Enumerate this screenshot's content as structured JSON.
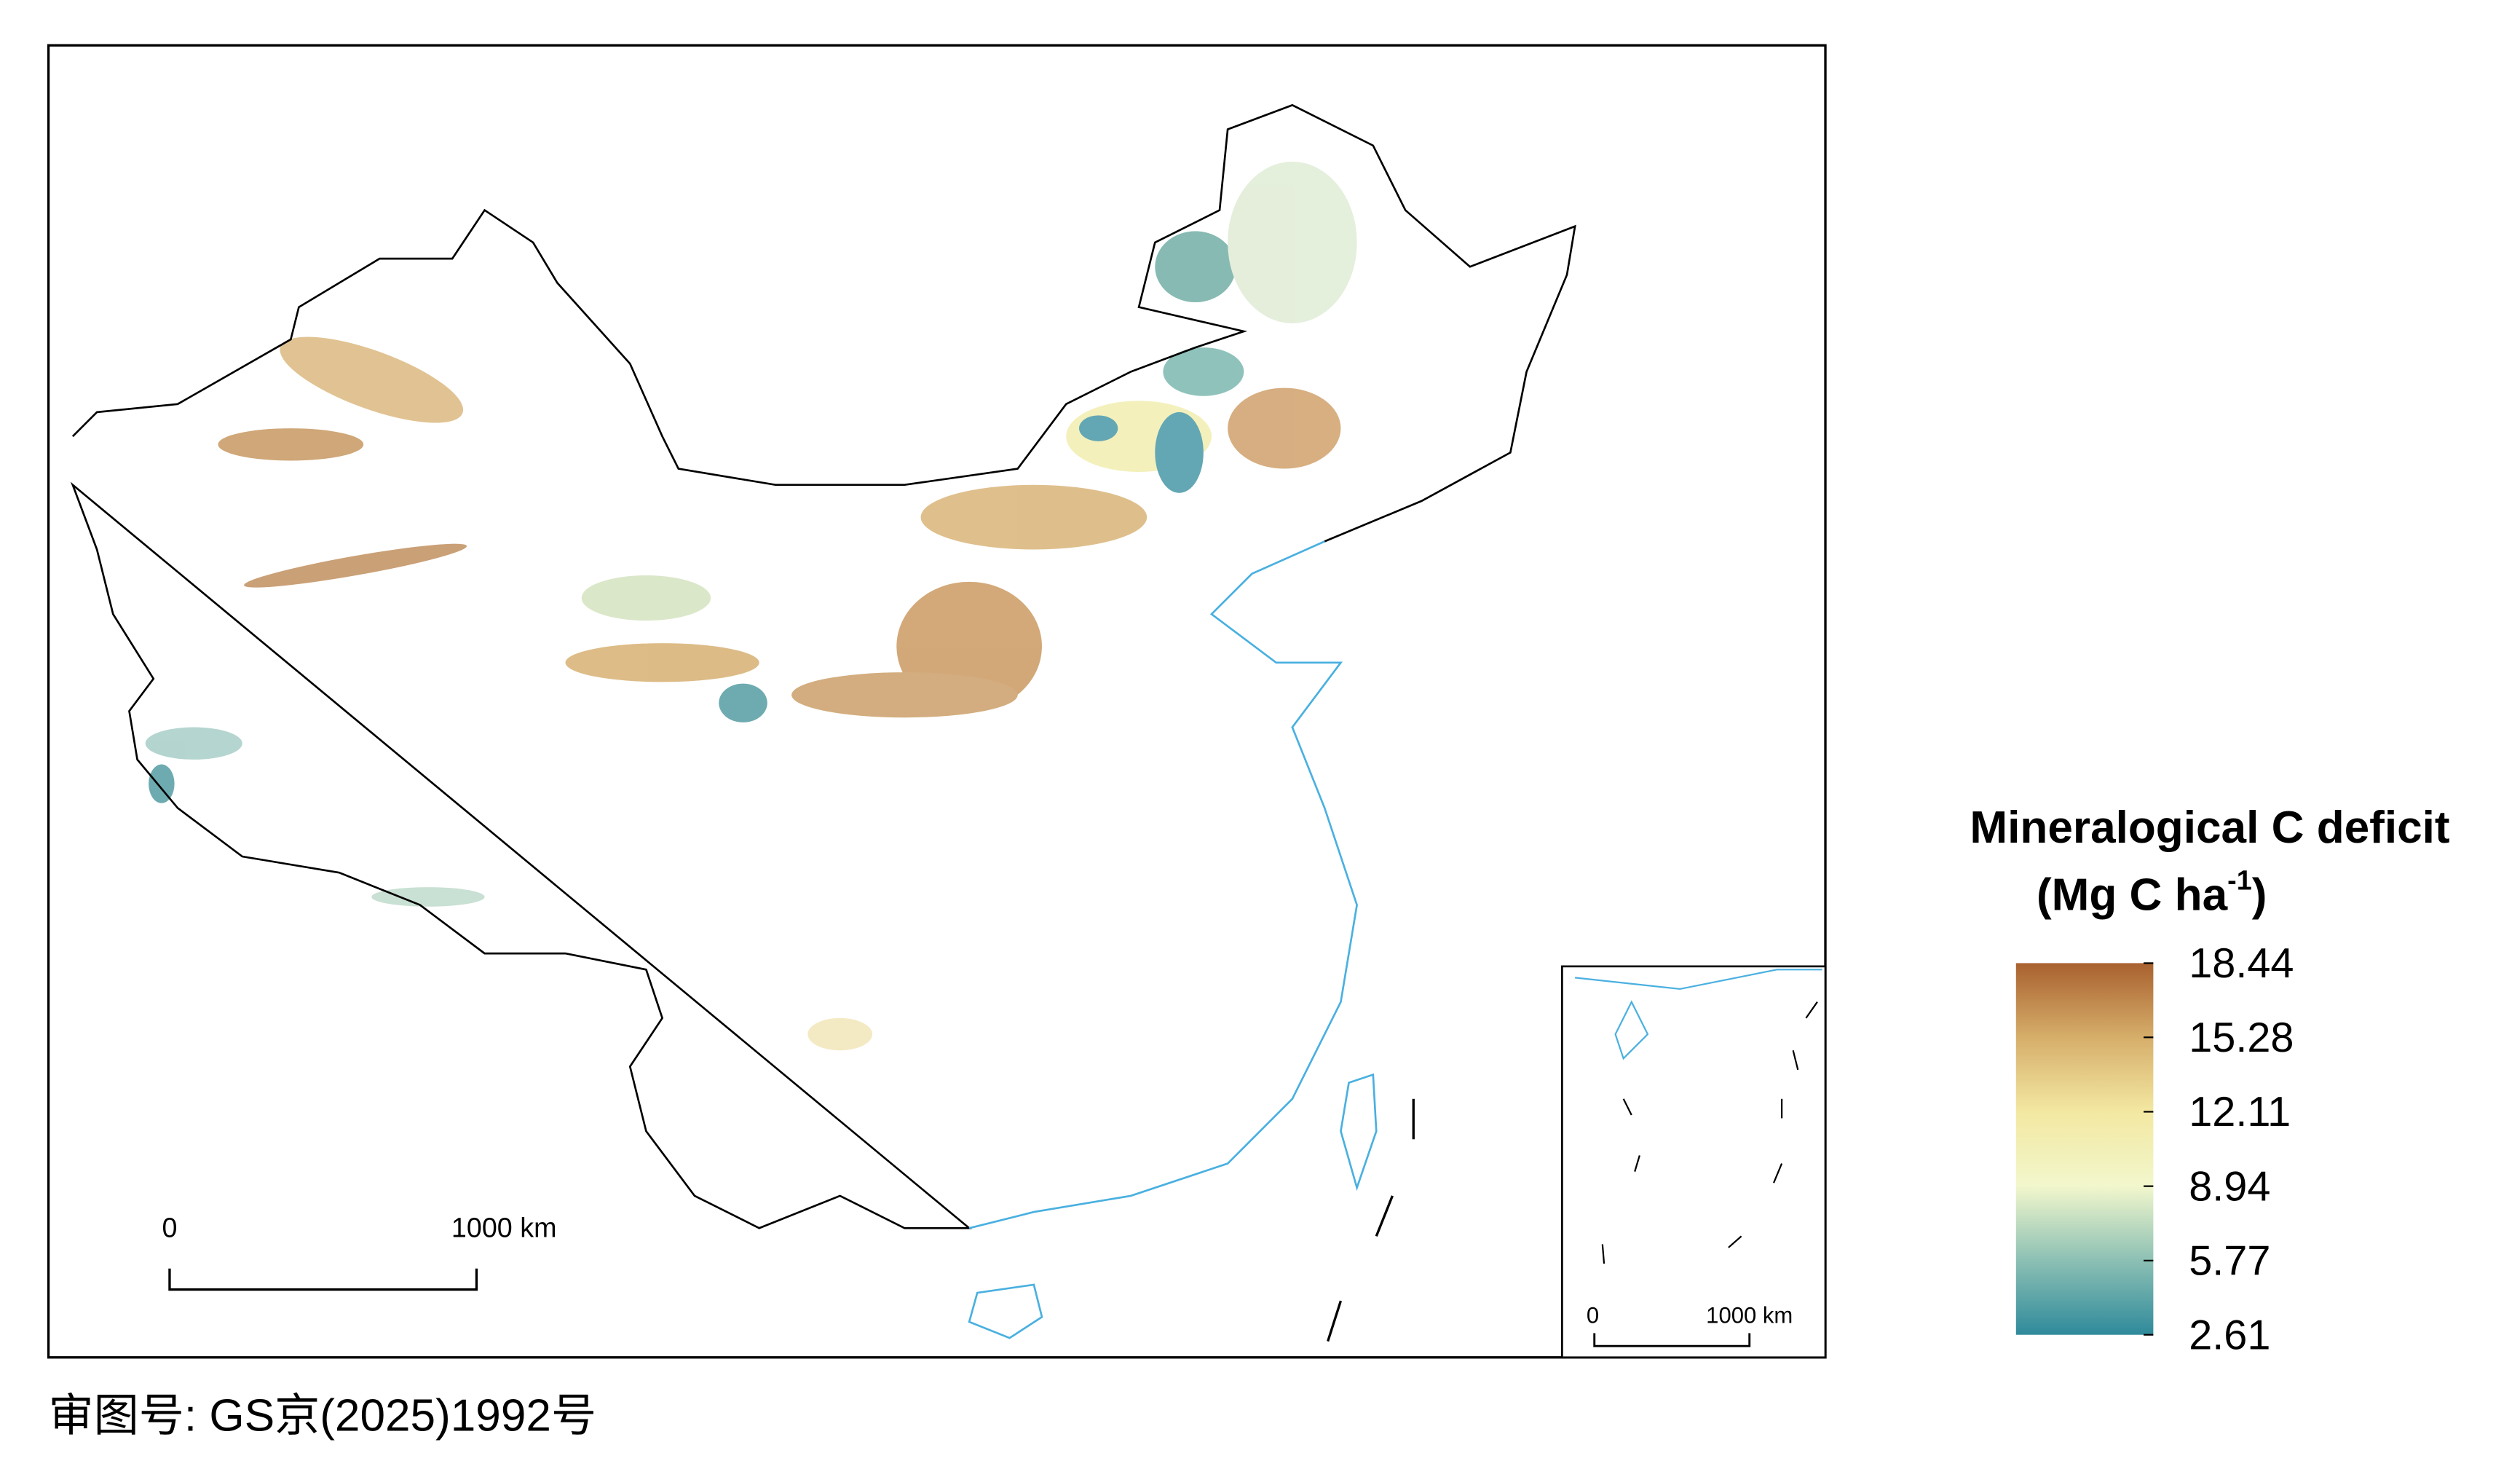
{
  "map": {
    "scale_bar": {
      "start": "0",
      "end": "1000 km"
    },
    "inset_scale_bar": {
      "start": "0",
      "end": "1000 km"
    },
    "legend": {
      "title": "Mineralogical C deficit",
      "unit_open": "(Mg C ha",
      "unit_sup": "-1",
      "unit_close": ")",
      "range": [
        2.61,
        18.44
      ],
      "ticks": [
        18.44,
        15.28,
        12.11,
        8.94,
        5.77,
        2.61
      ],
      "colors": [
        "#2f8a9b",
        "#8cc0b4",
        "#f2f7cc",
        "#f3e8a2",
        "#d6ae6a",
        "#a9612f"
      ]
    },
    "approval": "审图号: GS京(2025)1992号"
  }
}
